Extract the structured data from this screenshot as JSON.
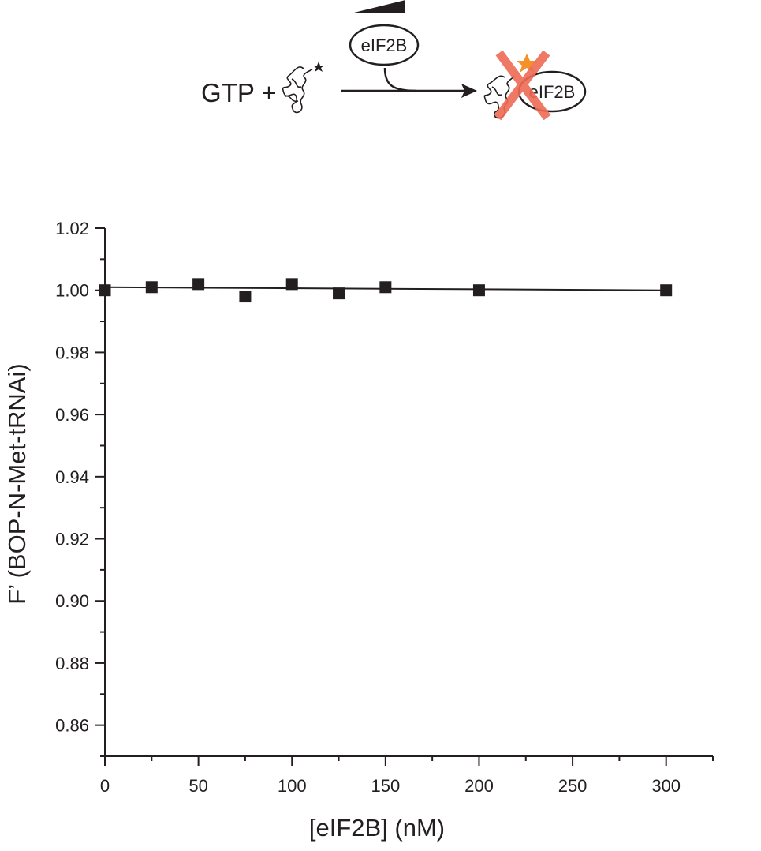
{
  "scheme": {
    "left_label": "GTP +",
    "enzyme_label": "eIF2B",
    "product_enzyme_label": "eIF2B",
    "colors": {
      "cross": "#ee6b55",
      "star": "#f4912a",
      "ink": "#231f20"
    }
  },
  "chart_data": {
    "type": "scatter",
    "title": "",
    "xlabel": "[eIF2B] (nM)",
    "ylabel": "F’ (BOP-N-Met-tRNAi)",
    "xlim": [
      0,
      325
    ],
    "ylim": [
      0.85,
      1.02
    ],
    "x_ticks": [
      0,
      50,
      100,
      150,
      200,
      250,
      300
    ],
    "y_ticks": [
      0.86,
      0.88,
      0.9,
      0.92,
      0.94,
      0.96,
      0.98,
      1.0,
      1.02
    ],
    "x_tick_labels": [
      "0",
      "50",
      "100",
      "150",
      "200",
      "250",
      "300"
    ],
    "y_tick_labels": [
      "0.86",
      "0.88",
      "0.90",
      "0.92",
      "0.94",
      "0.96",
      "0.98",
      "1.00",
      "1.02"
    ],
    "grid": false,
    "series": [
      {
        "marker": "square",
        "color": "#231f20",
        "x": [
          0,
          25,
          50,
          75,
          100,
          125,
          150,
          200,
          300
        ],
        "y": [
          1.0,
          1.001,
          1.002,
          0.998,
          1.002,
          0.999,
          1.001,
          1.0,
          1.0
        ]
      }
    ],
    "fit_line": {
      "x": [
        0,
        300
      ],
      "y": [
        1.001,
        1.0
      ]
    }
  }
}
